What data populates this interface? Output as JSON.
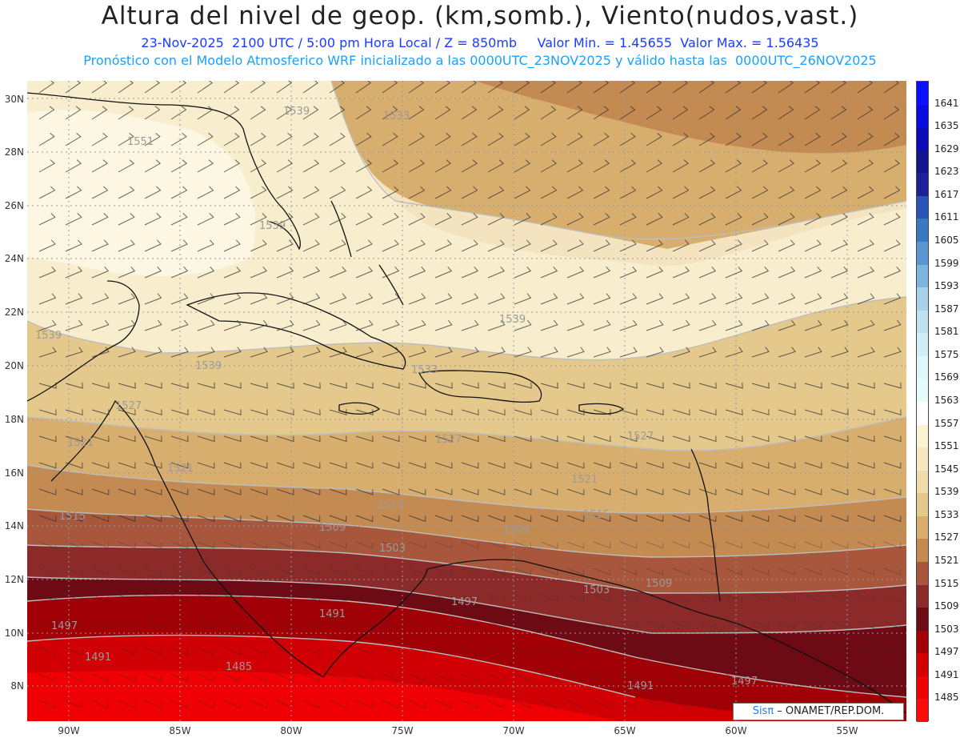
{
  "header": {
    "title": "Altura del nivel de geop. (km,somb.), Viento(nudos,vast.)",
    "line1": "23-Nov-2025  2100 UTC / 5:00 pm Hora Local / Z = 850mb     Valor Min. = 1.45655  Valor Max. = 1.56435",
    "line2": "Pronóstico con el Modelo Atmosferico WRF inicializado a las 0000UTC_23NOV2025 y válido hasta las  0000UTC_26NOV2025"
  },
  "map": {
    "lat_labels": [
      "30N",
      "28N",
      "26N",
      "24N",
      "22N",
      "20N",
      "18N",
      "16N",
      "14N",
      "12N",
      "10N",
      "8N"
    ],
    "lon_labels": [
      "90W",
      "85W",
      "80W",
      "75W",
      "70W",
      "65W",
      "60W",
      "55W"
    ],
    "contour_labels": [
      "1551",
      "1539",
      "1539",
      "1539",
      "1539",
      "1533",
      "1533",
      "1539",
      "1527",
      "1527",
      "1527",
      "1521",
      "1521",
      "1521",
      "1515",
      "1515",
      "1515",
      "1509",
      "1509",
      "1509",
      "1503",
      "1503",
      "1497",
      "1497",
      "1497",
      "1491",
      "1491",
      "1491",
      "1485"
    ]
  },
  "colorbar": {
    "levels": [
      "1641",
      "1635",
      "1629",
      "1623",
      "1617",
      "1611",
      "1605",
      "1599",
      "1593",
      "1587",
      "1581",
      "1575",
      "1569",
      "1563",
      "1557",
      "1551",
      "1545",
      "1539",
      "1533",
      "1527",
      "1521",
      "1515",
      "1509",
      "1503",
      "1497",
      "1491",
      "1485"
    ],
    "colors": [
      "#0a10ff",
      "#0a0ae0",
      "#0a0ab8",
      "#14148c",
      "#1f1f96",
      "#2a55b4",
      "#3a78c0",
      "#5a96d0",
      "#7fb4dc",
      "#a8d2e8",
      "#c0e2f0",
      "#cfeef6",
      "#ddf7fb",
      "#e6fbfd",
      "#ffffff",
      "#fbf3d4",
      "#f5e8c2",
      "#efdcaa",
      "#e4c88c",
      "#d8ae6e",
      "#c38a52",
      "#a8573c",
      "#8c2a2a",
      "#6e0a14",
      "#a00006",
      "#d00004",
      "#ee0004",
      "#ff0a0a"
    ]
  },
  "credit": {
    "brand": "Sisπ",
    "text": " – ONAMET/REP.DOM."
  }
}
